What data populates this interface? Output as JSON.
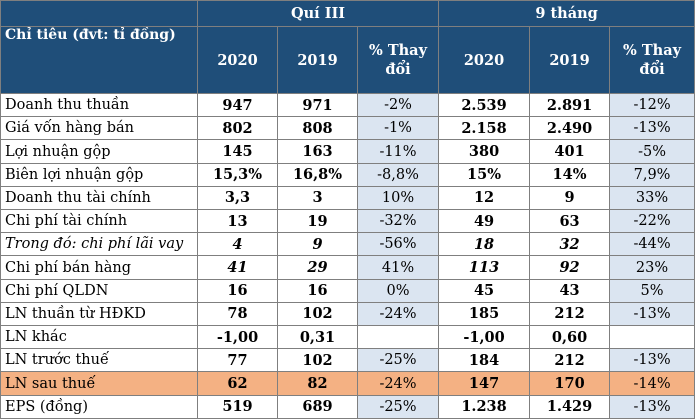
{
  "header": {
    "group1": "Quí III",
    "group2": "9 tháng",
    "label_col": "Chỉ tiêu (đvt: tỉ đồng)",
    "y1": "2020",
    "y2": "2019",
    "pct_line1": "% Thay",
    "pct_line2": "đổi"
  },
  "rows": [
    {
      "name": "Doanh thu thuần",
      "q20": "947",
      "q19": "971",
      "qp": "-2%",
      "m20": "2.539",
      "m19": "2.891",
      "mp": "-12%"
    },
    {
      "name": "Giá vốn hàng bán",
      "q20": "802",
      "q19": "808",
      "qp": "-1%",
      "m20": "2.158",
      "m19": "2.490",
      "mp": "-13%"
    },
    {
      "name": "Lợi nhuận gộp",
      "q20": "145",
      "q19": "163",
      "qp": "-11%",
      "m20": "380",
      "m19": "401",
      "mp": "-5%"
    },
    {
      "name": "Biên lợi nhuận gộp",
      "q20": "15,3%",
      "q19": "16,8%",
      "qp": "-8,8%",
      "m20": "15%",
      "m19": "14%",
      "mp": "7,9%"
    },
    {
      "name": "Doanh thu tài chính",
      "q20": "3,3",
      "q19": "3",
      "qp": "10%",
      "m20": "12",
      "m19": "9",
      "mp": "33%"
    },
    {
      "name": "Chi phí tài chính",
      "q20": "13",
      "q19": "19",
      "qp": "-32%",
      "m20": "49",
      "m19": "63",
      "mp": "-22%"
    },
    {
      "name": "Trong đó: chi phí lãi vay",
      "q20": "4",
      "q19": "9",
      "qp": "-56%",
      "m20": "18",
      "m19": "32",
      "mp": "-44%"
    },
    {
      "name": "Chi phí bán hàng",
      "q20": "41",
      "q19": "29",
      "qp": "41%",
      "m20": "113",
      "m19": "92",
      "mp": "23%"
    },
    {
      "name": "Chi phí QLDN",
      "q20": "16",
      "q19": "16",
      "qp": "0%",
      "m20": "45",
      "m19": "43",
      "mp": "5%"
    },
    {
      "name": "LN thuần từ HĐKD",
      "q20": "78",
      "q19": "102",
      "qp": "-24%",
      "m20": "185",
      "m19": "212",
      "mp": "-13%"
    },
    {
      "name": "LN khác",
      "q20": "-1,00",
      "q19": "0,31",
      "qp": "",
      "m20": "-1,00",
      "m19": "0,60",
      "mp": ""
    },
    {
      "name": "LN trước thuế",
      "q20": "77",
      "q19": "102",
      "qp": "-25%",
      "m20": "184",
      "m19": "212",
      "mp": "-13%"
    },
    {
      "name": "LN sau thuế",
      "q20": "62",
      "q19": "82",
      "qp": "-24%",
      "m20": "147",
      "m19": "170",
      "mp": "-14%"
    },
    {
      "name": "EPS (đồng)",
      "q20": "519",
      "q19": "689",
      "qp": "-25%",
      "m20": "1.238",
      "m19": "1.429",
      "mp": "-13%"
    }
  ],
  "colors": {
    "header_bg": "#1f4e79",
    "pct_bg": "#dbe5f1",
    "highlight_row": "#f4b183"
  }
}
